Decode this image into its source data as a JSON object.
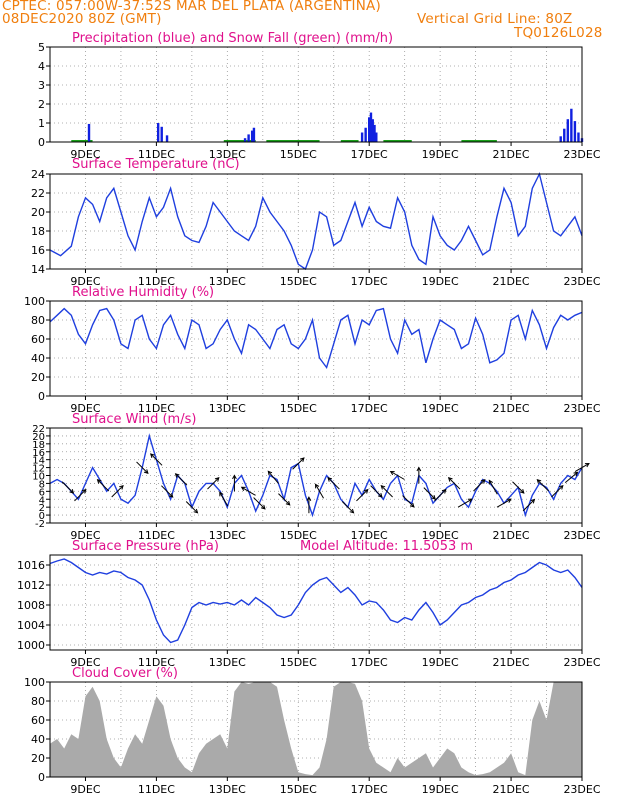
{
  "header": {
    "line1": "CPTEC:   057:00W-37:52S   MAR DEL PLATA (ARGENTINA)",
    "line2_left": "08DEC2020 80Z (GMT)",
    "line2_right": "Vertical Grid Line: 80Z",
    "code": "TQ0126L028"
  },
  "colors": {
    "header": "#f07f0f",
    "title": "#e0108c",
    "line": "#1f3fdf",
    "precip": "#1020e0",
    "snow": "#1aa01a",
    "cloud": "#aaaaaa",
    "grid": "#999999"
  },
  "x_ticks": [
    "9DEC",
    "11DEC",
    "13DEC",
    "15DEC",
    "17DEC",
    "19DEC",
    "21DEC",
    "23DEC"
  ],
  "panels": [
    {
      "id": "precip",
      "title": "Precipitation (blue) and Snow Fall (green) (mm/h)",
      "extra": "",
      "yticks": [
        "5",
        "4",
        "3",
        "2",
        "1",
        "0"
      ]
    },
    {
      "id": "temp",
      "title": "Surface Temperature (nC)",
      "extra": "",
      "yticks": [
        "24",
        "22",
        "20",
        "18",
        "16",
        "14"
      ]
    },
    {
      "id": "rh",
      "title": "Relative Humidity (%)",
      "extra": "",
      "yticks": [
        "100",
        "80",
        "60",
        "40",
        "20",
        "0"
      ]
    },
    {
      "id": "wind",
      "title": "Surface Wind (m/s)",
      "extra": "",
      "yticks": [
        "22",
        "20",
        "18",
        "16",
        "14",
        "12",
        "10",
        "8",
        "6",
        "4",
        "2",
        "0",
        "-2"
      ]
    },
    {
      "id": "pres",
      "title": "Surface Pressure (hPa)",
      "extra": "Model Altitude: 11.5053 m",
      "yticks": [
        "1016",
        "1012",
        "1008",
        "1004",
        "1000"
      ]
    },
    {
      "id": "cloud",
      "title": "Cloud Cover (%)",
      "extra": "",
      "yticks": [
        "100",
        "80",
        "60",
        "40",
        "20",
        "0"
      ]
    }
  ],
  "chart_data": [
    {
      "type": "bar",
      "title": "Precipitation (blue) and Snow Fall (green) (mm/h)",
      "ylim": [
        0,
        5
      ],
      "x_unit": "days since 08DEC2020 00Z",
      "xlim": [
        8.0,
        23.0
      ],
      "x": [
        9.1,
        11.05,
        11.15,
        11.3,
        13.5,
        13.6,
        13.7,
        13.75,
        16.8,
        16.9,
        17.0,
        17.05,
        17.1,
        17.15,
        17.2,
        22.4,
        22.5,
        22.6,
        22.7,
        22.8,
        22.9,
        23.0
      ],
      "values": [
        0.95,
        1.0,
        0.8,
        0.35,
        0.2,
        0.4,
        0.6,
        0.75,
        0.5,
        0.75,
        1.3,
        1.55,
        1.2,
        0.9,
        0.5,
        0.3,
        0.7,
        1.2,
        1.75,
        1.1,
        0.5,
        0.2
      ],
      "snow_spans": [
        [
          8.6,
          9.2
        ],
        [
          12.9,
          13.8
        ],
        [
          14.1,
          15.6
        ],
        [
          16.2,
          16.7
        ],
        [
          17.4,
          18.2
        ],
        [
          19.6,
          20.6
        ]
      ]
    },
    {
      "type": "line",
      "title": "Surface Temperature (nC)",
      "ylim": [
        14,
        24
      ],
      "x": [
        8.0,
        8.3,
        8.6,
        8.8,
        9.0,
        9.2,
        9.4,
        9.6,
        9.8,
        10.0,
        10.2,
        10.4,
        10.6,
        10.8,
        11.0,
        11.2,
        11.4,
        11.6,
        11.8,
        12.0,
        12.2,
        12.4,
        12.6,
        12.8,
        13.0,
        13.2,
        13.4,
        13.6,
        13.8,
        14.0,
        14.2,
        14.4,
        14.6,
        14.8,
        15.0,
        15.2,
        15.4,
        15.6,
        15.8,
        16.0,
        16.2,
        16.4,
        16.6,
        16.8,
        17.0,
        17.2,
        17.4,
        17.6,
        17.8,
        18.0,
        18.2,
        18.4,
        18.6,
        18.8,
        19.0,
        19.2,
        19.4,
        19.6,
        19.8,
        20.0,
        20.2,
        20.4,
        20.6,
        20.8,
        21.0,
        21.2,
        21.4,
        21.6,
        21.8,
        22.0,
        22.2,
        22.4,
        22.6,
        22.8,
        23.0
      ],
      "y": [
        16.0,
        15.4,
        16.4,
        19.5,
        21.5,
        20.8,
        19.0,
        21.5,
        22.5,
        20.0,
        17.5,
        16.0,
        19.0,
        21.5,
        19.5,
        20.5,
        22.5,
        19.5,
        17.5,
        17.0,
        16.8,
        18.5,
        21.0,
        20.0,
        19.0,
        18.0,
        17.5,
        17.0,
        18.5,
        21.5,
        20.0,
        19.0,
        18.0,
        16.5,
        14.5,
        14.0,
        16.0,
        20.0,
        19.5,
        16.5,
        17.0,
        19.0,
        21.0,
        18.5,
        20.5,
        19.0,
        18.5,
        18.3,
        21.5,
        20.0,
        16.5,
        15.0,
        14.5,
        19.5,
        17.5,
        16.5,
        16.0,
        17.0,
        18.5,
        17.0,
        15.5,
        16.0,
        19.5,
        22.5,
        21.0,
        17.5,
        18.5,
        22.5,
        24.0,
        21.0,
        18.0,
        17.5,
        18.5,
        19.5,
        17.5
      ]
    },
    {
      "type": "line",
      "title": "Relative Humidity (%)",
      "ylim": [
        0,
        100
      ],
      "x": [
        8.0,
        8.2,
        8.4,
        8.6,
        8.8,
        9.0,
        9.2,
        9.4,
        9.6,
        9.8,
        10.0,
        10.2,
        10.4,
        10.6,
        10.8,
        11.0,
        11.2,
        11.4,
        11.6,
        11.8,
        12.0,
        12.2,
        12.4,
        12.6,
        12.8,
        13.0,
        13.2,
        13.4,
        13.6,
        13.8,
        14.0,
        14.2,
        14.4,
        14.6,
        14.8,
        15.0,
        15.2,
        15.4,
        15.6,
        15.8,
        16.0,
        16.2,
        16.4,
        16.6,
        16.8,
        17.0,
        17.2,
        17.4,
        17.6,
        17.8,
        18.0,
        18.2,
        18.4,
        18.6,
        18.8,
        19.0,
        19.2,
        19.4,
        19.6,
        19.8,
        20.0,
        20.2,
        20.4,
        20.6,
        20.8,
        21.0,
        21.2,
        21.4,
        21.6,
        21.8,
        22.0,
        22.2,
        22.4,
        22.6,
        22.8,
        23.0
      ],
      "y": [
        78,
        85,
        92,
        85,
        65,
        55,
        75,
        90,
        92,
        80,
        55,
        50,
        80,
        85,
        60,
        50,
        75,
        85,
        65,
        50,
        80,
        75,
        50,
        55,
        70,
        80,
        60,
        45,
        75,
        70,
        60,
        50,
        70,
        75,
        55,
        50,
        60,
        80,
        40,
        30,
        55,
        80,
        85,
        55,
        80,
        75,
        90,
        92,
        60,
        45,
        80,
        65,
        70,
        35,
        60,
        80,
        75,
        70,
        50,
        55,
        82,
        65,
        35,
        38,
        45,
        80,
        85,
        60,
        90,
        75,
        50,
        72,
        85,
        80,
        85,
        88
      ]
    },
    {
      "type": "line",
      "title": "Surface Wind (m/s)",
      "ylim": [
        -2,
        22
      ],
      "x": [
        8.0,
        8.2,
        8.4,
        8.6,
        8.8,
        9.0,
        9.2,
        9.4,
        9.6,
        9.8,
        10.0,
        10.2,
        10.4,
        10.6,
        10.8,
        11.0,
        11.2,
        11.4,
        11.6,
        11.8,
        12.0,
        12.2,
        12.4,
        12.6,
        12.8,
        13.0,
        13.2,
        13.4,
        13.6,
        13.8,
        14.0,
        14.2,
        14.4,
        14.6,
        14.8,
        15.0,
        15.2,
        15.4,
        15.6,
        15.8,
        16.0,
        16.2,
        16.4,
        16.6,
        16.8,
        17.0,
        17.2,
        17.4,
        17.6,
        17.8,
        18.0,
        18.2,
        18.4,
        18.6,
        18.8,
        19.0,
        19.2,
        19.4,
        19.6,
        19.8,
        20.0,
        20.2,
        20.4,
        20.6,
        20.8,
        21.0,
        21.2,
        21.4,
        21.6,
        21.8,
        22.0,
        22.2,
        22.4,
        22.6,
        22.8,
        23.0
      ],
      "y": [
        8,
        9,
        8,
        6,
        4,
        8,
        12,
        9,
        6,
        8,
        4,
        3,
        5,
        12,
        20,
        14,
        8,
        4,
        10,
        8,
        2,
        6,
        8,
        8,
        6,
        2,
        8,
        10,
        6,
        1,
        5,
        10,
        9,
        4,
        12,
        13,
        5,
        0,
        6,
        10,
        8,
        4,
        2,
        8,
        5,
        9,
        6,
        4,
        8,
        10,
        4,
        3,
        10,
        8,
        3,
        5,
        7,
        8,
        4,
        2,
        6,
        9,
        8,
        6,
        3,
        5,
        7,
        0,
        5,
        8,
        7,
        4,
        8,
        10,
        9,
        12
      ],
      "arrows_x": [
        8.5,
        8.85,
        9.5,
        9.9,
        10.6,
        11.0,
        11.3,
        11.7,
        12.0,
        12.6,
        12.9,
        13.2,
        13.6,
        13.9,
        14.3,
        14.6,
        15.0,
        15.3,
        15.6,
        16.0,
        16.4,
        16.8,
        17.2,
        17.5,
        17.8,
        18.1,
        18.4,
        18.7,
        19.0,
        19.4,
        19.7,
        20.1,
        20.5,
        20.8,
        21.2,
        21.5,
        21.9,
        22.3,
        22.7,
        23.0
      ],
      "arrows_deg": [
        135,
        45,
        315,
        45,
        135,
        315,
        135,
        315,
        135,
        45,
        330,
        0,
        300,
        135,
        320,
        135,
        45,
        0,
        330,
        315,
        135,
        45,
        135,
        315,
        300,
        135,
        0,
        135,
        45,
        315,
        60,
        45,
        330,
        60,
        135,
        45,
        315,
        45,
        50,
        60
      ]
    },
    {
      "type": "line",
      "title": "Surface Pressure (hPa)",
      "ylim": [
        999,
        1018
      ],
      "x": [
        8.0,
        8.2,
        8.4,
        8.6,
        8.8,
        9.0,
        9.2,
        9.4,
        9.6,
        9.8,
        10.0,
        10.2,
        10.4,
        10.6,
        10.8,
        11.0,
        11.2,
        11.4,
        11.6,
        11.8,
        12.0,
        12.2,
        12.4,
        12.6,
        12.8,
        13.0,
        13.2,
        13.4,
        13.6,
        13.8,
        14.0,
        14.2,
        14.4,
        14.6,
        14.8,
        15.0,
        15.2,
        15.4,
        15.6,
        15.8,
        16.0,
        16.2,
        16.4,
        16.6,
        16.8,
        17.0,
        17.2,
        17.4,
        17.6,
        17.8,
        18.0,
        18.2,
        18.4,
        18.6,
        18.8,
        19.0,
        19.2,
        19.4,
        19.6,
        19.8,
        20.0,
        20.2,
        20.4,
        20.6,
        20.8,
        21.0,
        21.2,
        21.4,
        21.6,
        21.8,
        22.0,
        22.2,
        22.4,
        22.6,
        22.8,
        23.0
      ],
      "y": [
        1016.3,
        1016.8,
        1017.2,
        1016.5,
        1015.5,
        1014.5,
        1014.0,
        1014.5,
        1014.2,
        1014.8,
        1014.5,
        1013.5,
        1013.0,
        1012.0,
        1009.0,
        1005.0,
        1002.0,
        1000.5,
        1001.0,
        1004.0,
        1007.5,
        1008.5,
        1008.0,
        1008.5,
        1008.2,
        1008.5,
        1008.0,
        1009.0,
        1008.0,
        1009.5,
        1008.5,
        1007.5,
        1006.0,
        1005.5,
        1006.0,
        1008.0,
        1010.5,
        1012.0,
        1013.0,
        1013.5,
        1012.0,
        1010.5,
        1011.5,
        1010.0,
        1008.0,
        1008.8,
        1008.5,
        1007.0,
        1005.0,
        1004.5,
        1005.5,
        1005.0,
        1007.0,
        1008.5,
        1006.5,
        1004.0,
        1005.0,
        1006.5,
        1008.0,
        1008.5,
        1009.5,
        1010.0,
        1011.0,
        1011.5,
        1012.5,
        1013.0,
        1014.0,
        1014.5,
        1015.5,
        1016.5,
        1016.0,
        1015.0,
        1014.5,
        1015.0,
        1013.5,
        1011.5
      ]
    },
    {
      "type": "area",
      "title": "Cloud Cover (%)",
      "ylim": [
        0,
        100
      ],
      "x": [
        8.0,
        8.2,
        8.4,
        8.6,
        8.8,
        9.0,
        9.2,
        9.4,
        9.6,
        9.8,
        10.0,
        10.2,
        10.4,
        10.6,
        10.8,
        11.0,
        11.2,
        11.4,
        11.6,
        11.8,
        12.0,
        12.2,
        12.4,
        12.6,
        12.8,
        13.0,
        13.2,
        13.4,
        13.6,
        13.8,
        14.0,
        14.2,
        14.4,
        14.6,
        14.8,
        15.0,
        15.2,
        15.4,
        15.6,
        15.8,
        16.0,
        16.2,
        16.4,
        16.6,
        16.8,
        17.0,
        17.2,
        17.4,
        17.6,
        17.8,
        18.0,
        18.2,
        18.4,
        18.6,
        18.8,
        19.0,
        19.2,
        19.4,
        19.6,
        19.8,
        20.0,
        20.2,
        20.4,
        20.6,
        20.8,
        21.0,
        21.2,
        21.4,
        21.6,
        21.8,
        22.0,
        22.2,
        22.4,
        22.6,
        22.8,
        23.0
      ],
      "y": [
        35,
        40,
        30,
        45,
        40,
        85,
        95,
        80,
        40,
        20,
        10,
        30,
        45,
        35,
        60,
        85,
        75,
        40,
        20,
        10,
        5,
        25,
        35,
        40,
        45,
        30,
        90,
        100,
        98,
        100,
        100,
        100,
        95,
        60,
        30,
        5,
        3,
        2,
        10,
        40,
        95,
        100,
        100,
        98,
        80,
        30,
        15,
        10,
        5,
        20,
        10,
        15,
        20,
        25,
        10,
        20,
        30,
        25,
        10,
        5,
        2,
        3,
        5,
        10,
        15,
        25,
        5,
        2,
        60,
        80,
        60,
        100,
        100,
        100,
        100,
        100
      ]
    }
  ]
}
